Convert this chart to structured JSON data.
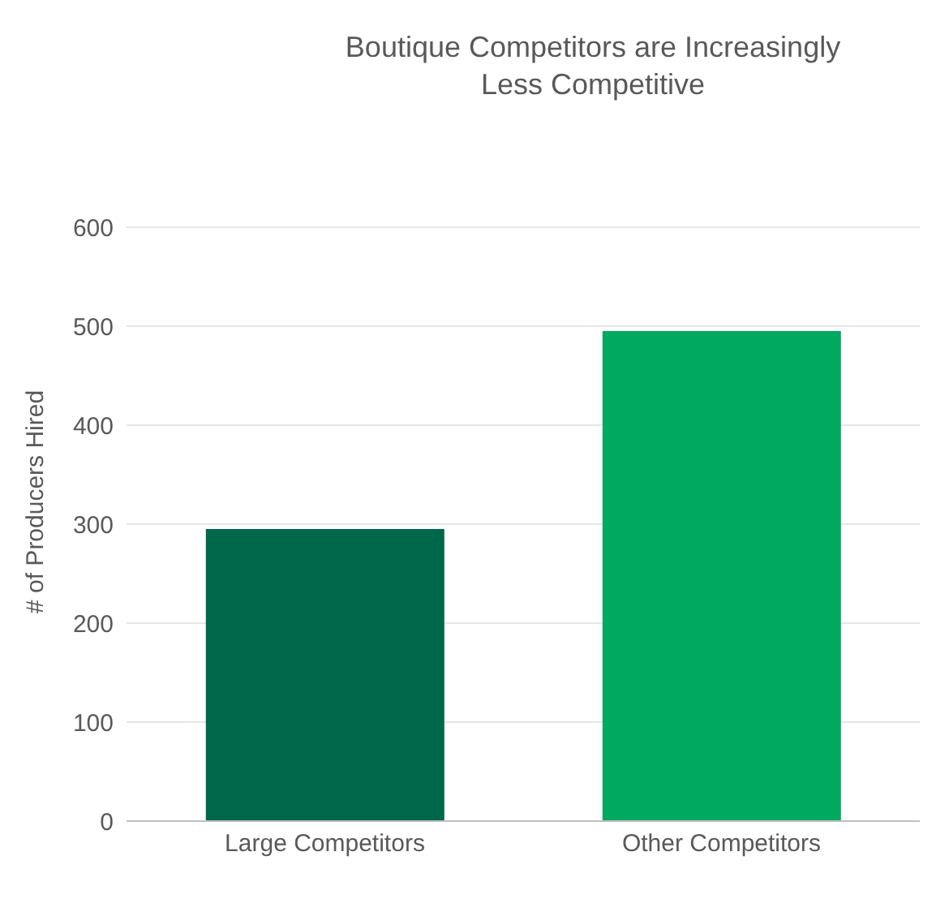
{
  "chart_data": {
    "type": "bar",
    "title": "Boutique Competitors are Increasingly Less Competitive",
    "ylabel": "# of Producers Hired",
    "categories": [
      "Large Competitors",
      "Other Competitors"
    ],
    "values": [
      295,
      495
    ],
    "colors": [
      "#00684a",
      "#00a960"
    ],
    "ylim": [
      0,
      600
    ],
    "yticks": [
      0,
      100,
      200,
      300,
      400,
      500,
      600
    ],
    "grid": "y"
  }
}
